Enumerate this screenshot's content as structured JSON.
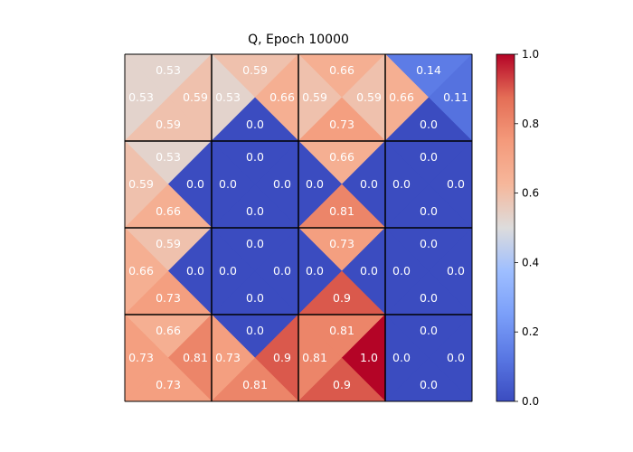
{
  "chart_data": {
    "type": "heatmap",
    "title": "Q, Epoch 10000",
    "grid_rows": 4,
    "grid_cols": 4,
    "cell_order": [
      "top",
      "left",
      "right",
      "bottom"
    ],
    "cells": [
      [
        {
          "top": 0.53,
          "left": 0.53,
          "right": 0.59,
          "bottom": 0.59
        },
        {
          "top": 0.59,
          "left": 0.53,
          "right": 0.66,
          "bottom": 0.0
        },
        {
          "top": 0.66,
          "left": 0.59,
          "right": 0.59,
          "bottom": 0.73
        },
        {
          "top": 0.14,
          "left": 0.66,
          "right": 0.11,
          "bottom": 0.0
        }
      ],
      [
        {
          "top": 0.53,
          "left": 0.59,
          "right": 0.0,
          "bottom": 0.66
        },
        {
          "top": 0.0,
          "left": 0.0,
          "right": 0.0,
          "bottom": 0.0
        },
        {
          "top": 0.66,
          "left": 0.0,
          "right": 0.0,
          "bottom": 0.81
        },
        {
          "top": 0.0,
          "left": 0.0,
          "right": 0.0,
          "bottom": 0.0
        }
      ],
      [
        {
          "top": 0.59,
          "left": 0.66,
          "right": 0.0,
          "bottom": 0.73
        },
        {
          "top": 0.0,
          "left": 0.0,
          "right": 0.0,
          "bottom": 0.0
        },
        {
          "top": 0.73,
          "left": 0.0,
          "right": 0.0,
          "bottom": 0.9
        },
        {
          "top": 0.0,
          "left": 0.0,
          "right": 0.0,
          "bottom": 0.0
        }
      ],
      [
        {
          "top": 0.66,
          "left": 0.73,
          "right": 0.81,
          "bottom": 0.73
        },
        {
          "top": 0.0,
          "left": 0.73,
          "right": 0.9,
          "bottom": 0.81
        },
        {
          "top": 0.81,
          "left": 0.81,
          "right": 1.0,
          "bottom": 0.9
        },
        {
          "top": 0.0,
          "left": 0.0,
          "right": 0.0,
          "bottom": 0.0
        }
      ]
    ],
    "colormap": "coolwarm",
    "vmin": 0.0,
    "vmax": 1.0,
    "colorbar_ticks": [
      "0.0",
      "0.2",
      "0.4",
      "0.6",
      "0.8",
      "1.0"
    ],
    "grid": true
  }
}
